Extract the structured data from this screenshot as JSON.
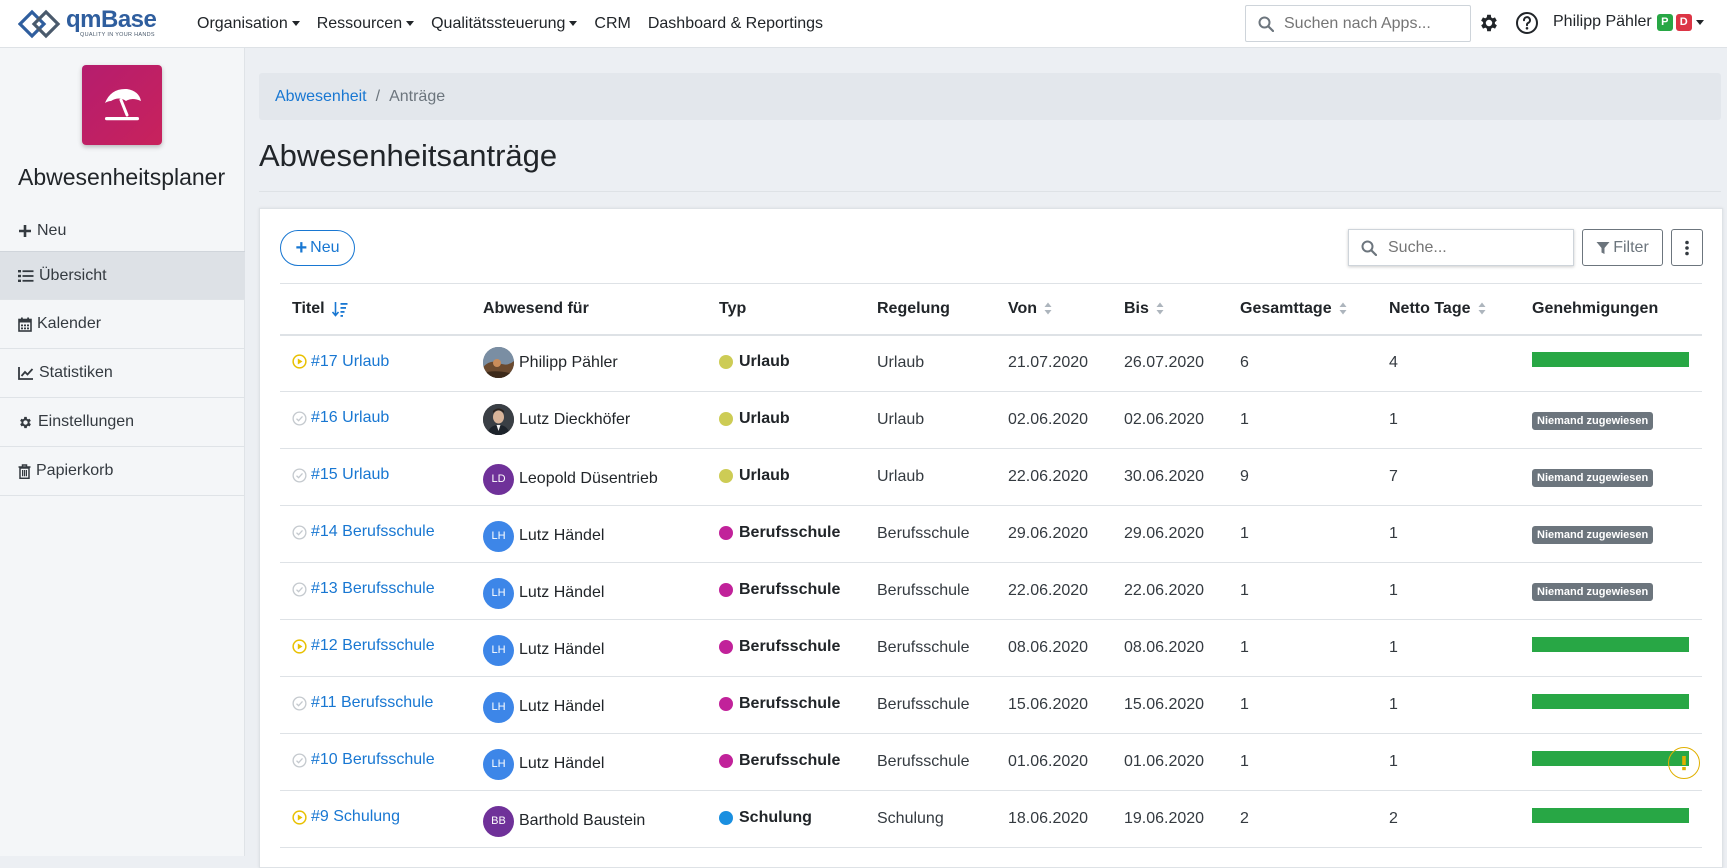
{
  "app": {
    "logo_text": "qmBase",
    "logo_tagline": "QUALITY IN YOUR HANDS"
  },
  "nav": {
    "items": [
      {
        "label": "Organisation",
        "dropdown": true
      },
      {
        "label": "Ressourcen",
        "dropdown": true
      },
      {
        "label": "Qualitätssteuerung",
        "dropdown": true
      },
      {
        "label": "CRM",
        "dropdown": false
      },
      {
        "label": "Dashboard & Reportings",
        "dropdown": false
      }
    ],
    "search_placeholder": "Suchen nach Apps...",
    "user_name": "Philipp Pähler",
    "user_badges": [
      "P",
      "D"
    ]
  },
  "sidebar": {
    "app_title": "Abwesenheitsplaner",
    "items": [
      {
        "label": "Neu",
        "icon": "plus-icon"
      },
      {
        "label": "Übersicht",
        "icon": "list-icon",
        "active": true
      },
      {
        "label": "Kalender",
        "icon": "calendar-icon"
      },
      {
        "label": "Statistiken",
        "icon": "line-chart-icon"
      },
      {
        "label": "Einstellungen",
        "icon": "gear-icon"
      },
      {
        "label": "Papierkorb",
        "icon": "trash-icon"
      }
    ]
  },
  "breadcrumb": {
    "parent": "Abwesenheit",
    "current": "Anträge"
  },
  "page": {
    "title": "Abwesenheitsanträge"
  },
  "toolbar": {
    "new_label": "Neu",
    "search_placeholder": "Suche...",
    "filter_label": "Filter"
  },
  "table": {
    "columns": [
      "Titel",
      "Abwesend für",
      "Typ",
      "Regelung",
      "Von",
      "Bis",
      "Gesamttage",
      "Netto Tage",
      "Genehmigungen"
    ],
    "rows": [
      {
        "status": "play",
        "title": "#17 Urlaub",
        "person": "Philipp Pähler",
        "avatar": "photo1",
        "avatar_initials": "",
        "type": "Urlaub",
        "type_color": "#cdcc55",
        "regelung": "Urlaub",
        "von": "21.07.2020",
        "bis": "26.07.2020",
        "gesamt": "6",
        "netto": "4",
        "approval": "bar",
        "approval_text": ""
      },
      {
        "status": "check",
        "title": "#16 Urlaub",
        "person": "Lutz Dieckhöfer",
        "avatar": "photo2",
        "avatar_initials": "",
        "type": "Urlaub",
        "type_color": "#cdcc55",
        "regelung": "Urlaub",
        "von": "02.06.2020",
        "bis": "02.06.2020",
        "gesamt": "1",
        "netto": "1",
        "approval": "badge",
        "approval_text": "Niemand zugewiesen"
      },
      {
        "status": "check",
        "title": "#15 Urlaub",
        "person": "Leopold Düsentrieb",
        "avatar": "initials",
        "avatar_initials": "LD",
        "avatar_color": "#6f3199",
        "type": "Urlaub",
        "type_color": "#cdcc55",
        "regelung": "Urlaub",
        "von": "22.06.2020",
        "bis": "30.06.2020",
        "gesamt": "9",
        "netto": "7",
        "approval": "badge",
        "approval_text": "Niemand zugewiesen"
      },
      {
        "status": "check",
        "title": "#14 Berufsschule",
        "person": "Lutz Händel",
        "avatar": "initials",
        "avatar_initials": "LH",
        "avatar_color": "#3d86e8",
        "type": "Berufsschule",
        "type_color": "#c1229a",
        "regelung": "Berufsschule",
        "von": "29.06.2020",
        "bis": "29.06.2020",
        "gesamt": "1",
        "netto": "1",
        "approval": "badge",
        "approval_text": "Niemand zugewiesen"
      },
      {
        "status": "check",
        "title": "#13 Berufsschule",
        "person": "Lutz Händel",
        "avatar": "initials",
        "avatar_initials": "LH",
        "avatar_color": "#3d86e8",
        "type": "Berufsschule",
        "type_color": "#c1229a",
        "regelung": "Berufsschule",
        "von": "22.06.2020",
        "bis": "22.06.2020",
        "gesamt": "1",
        "netto": "1",
        "approval": "badge",
        "approval_text": "Niemand zugewiesen"
      },
      {
        "status": "play",
        "title": "#12 Berufsschule",
        "person": "Lutz Händel",
        "avatar": "initials",
        "avatar_initials": "LH",
        "avatar_color": "#3d86e8",
        "type": "Berufsschule",
        "type_color": "#c1229a",
        "regelung": "Berufsschule",
        "von": "08.06.2020",
        "bis": "08.06.2020",
        "gesamt": "1",
        "netto": "1",
        "approval": "bar",
        "approval_text": ""
      },
      {
        "status": "check",
        "title": "#11 Berufsschule",
        "person": "Lutz Händel",
        "avatar": "initials",
        "avatar_initials": "LH",
        "avatar_color": "#3d86e8",
        "type": "Berufsschule",
        "type_color": "#c1229a",
        "regelung": "Berufsschule",
        "von": "15.06.2020",
        "bis": "15.06.2020",
        "gesamt": "1",
        "netto": "1",
        "approval": "bar",
        "approval_text": ""
      },
      {
        "status": "check",
        "title": "#10 Berufsschule",
        "person": "Lutz Händel",
        "avatar": "initials",
        "avatar_initials": "LH",
        "avatar_color": "#3d86e8",
        "type": "Berufsschule",
        "type_color": "#c1229a",
        "regelung": "Berufsschule",
        "von": "01.06.2020",
        "bis": "01.06.2020",
        "gesamt": "1",
        "netto": "1",
        "approval": "bar",
        "approval_text": ""
      },
      {
        "status": "play",
        "title": "#9 Schulung",
        "person": "Barthold Baustein",
        "avatar": "initials",
        "avatar_initials": "BB",
        "avatar_color": "#6f3199",
        "type": "Schulung",
        "type_color": "#1a8fe0",
        "regelung": "Schulung",
        "von": "18.06.2020",
        "bis": "19.06.2020",
        "gesamt": "2",
        "netto": "2",
        "approval": "bar",
        "approval_text": ""
      }
    ]
  },
  "colors": {
    "accent": "#1877d2",
    "approved_bar": "#28a745",
    "badge_gray": "#6c757d",
    "app_icon": "#b51d6e"
  }
}
